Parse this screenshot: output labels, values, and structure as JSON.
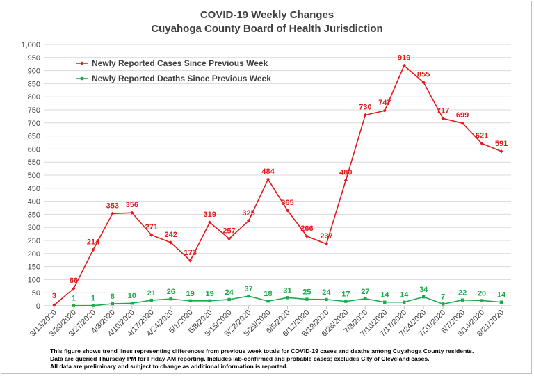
{
  "chart_data": {
    "type": "line",
    "title": "COVID-19 Weekly Changes",
    "subtitle": "Cuyahoga County Board of Health Jurisdiction",
    "xlabel": "",
    "ylabel": "",
    "ylim": [
      0,
      1000
    ],
    "yticks": [
      "0",
      "50",
      "100",
      "150",
      "200",
      "250",
      "300",
      "350",
      "400",
      "450",
      "500",
      "550",
      "600",
      "650",
      "700",
      "750",
      "800",
      "850",
      "900",
      "950",
      "1,000"
    ],
    "grid": true,
    "legend_position": "top-left",
    "categories": [
      "3/13/2020",
      "3/20/2020",
      "3/27/2020",
      "4/3/2020",
      "4/10/2020",
      "4/17/2020",
      "4/24/2020",
      "5/1/2020",
      "5/8/2020",
      "5/15/2020",
      "5/22/2020",
      "5/29/2020",
      "6/5/2020",
      "6/12/2020",
      "6/19/2020",
      "6/26/2020",
      "7/3/2020",
      "7/10/2020",
      "7/17/2020",
      "7/24/2020",
      "7/31/2020",
      "8/7/2020",
      "8/14/2020",
      "8/21/2020"
    ],
    "series": [
      {
        "name": "Newly Reported Cases Since Previous Week",
        "color": "#e31a1c",
        "marker": "diamond",
        "values": [
          3,
          66,
          214,
          353,
          356,
          271,
          242,
          173,
          319,
          257,
          325,
          484,
          365,
          266,
          237,
          480,
          730,
          747,
          919,
          855,
          717,
          699,
          621,
          591
        ],
        "labels": [
          "3",
          "66",
          "214",
          "353",
          "356",
          "271",
          "242",
          "173",
          "319",
          "257",
          "325",
          "484",
          "365",
          "266",
          "237",
          "480",
          "730",
          "747",
          "919",
          "855",
          "717",
          "699",
          "621",
          "591"
        ]
      },
      {
        "name": "Newly Reported Deaths Since Previous Week",
        "color": "#1aab4d",
        "marker": "square",
        "values": [
          null,
          1,
          1,
          8,
          10,
          21,
          26,
          19,
          19,
          24,
          37,
          18,
          31,
          25,
          24,
          17,
          27,
          14,
          14,
          34,
          7,
          22,
          20,
          14
        ],
        "labels": [
          "",
          "1",
          "1",
          "8",
          "10",
          "21",
          "26",
          "19",
          "19",
          "24",
          "37",
          "18",
          "31",
          "25",
          "24",
          "17",
          "27",
          "14",
          "14",
          "34",
          "7",
          "22",
          "20",
          "14"
        ]
      }
    ]
  },
  "footnote": [
    "This figure shows trend lines representing differences from previous week totals for COVID-19 cases and deaths among Cuyahoga County residents.",
    "Data are queried Thursday PM for Friday AM reporting. Includes lab-confirmed and probable cases; excludes City of Cleveland cases.",
    "All data are preliminary and subject to change as additional information is reported."
  ]
}
